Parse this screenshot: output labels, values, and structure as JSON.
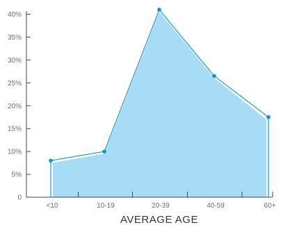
{
  "chart_data": {
    "type": "area",
    "title": "",
    "xlabel": "AVERAGE AGE",
    "ylabel": "",
    "categories": [
      "<10",
      "10-19",
      "20-39",
      "40-59",
      "60+"
    ],
    "values": [
      8,
      10,
      41,
      26.5,
      17.5
    ],
    "ylim": [
      0,
      40
    ],
    "yticks": [
      0,
      5,
      10,
      15,
      20,
      25,
      30,
      35,
      40
    ],
    "ytick_labels": [
      "0",
      "5%",
      "10%",
      "15%",
      "20%",
      "25%",
      "30%",
      "35%",
      "40%"
    ],
    "grid": false,
    "legend": "none",
    "colors": {
      "fill": "#a8dcf6",
      "line": "#1a9bc9",
      "point": "#1a8fc4",
      "axis": "#444444"
    }
  }
}
